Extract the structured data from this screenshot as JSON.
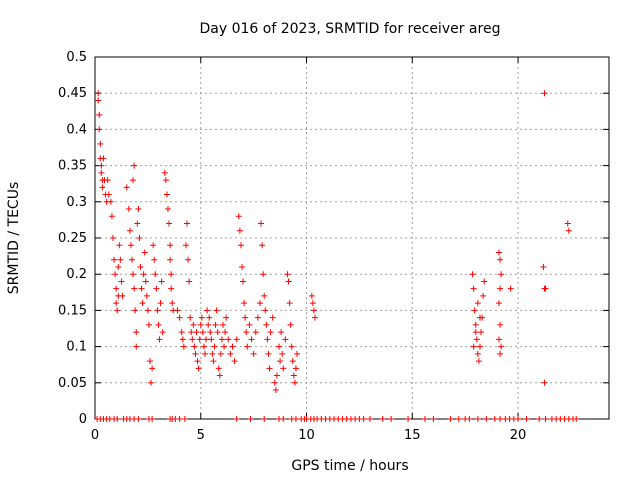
{
  "chart_data": {
    "type": "scatter",
    "title": "Day 016 of 2023, SRMTID for receiver areg",
    "xlabel": "GPS time / hours",
    "ylabel": "SRMTID / TECUs",
    "xlim": [
      0,
      24.3
    ],
    "ylim": [
      0,
      0.5
    ],
    "x_ticks": [
      0,
      5,
      10,
      15,
      20
    ],
    "x_tick_labels": [
      "0",
      "5",
      "10",
      "15",
      "20"
    ],
    "y_ticks": [
      0,
      0.05,
      0.1,
      0.15,
      0.2,
      0.25,
      0.3,
      0.35,
      0.4,
      0.45,
      0.5
    ],
    "y_tick_labels": [
      "0",
      "0.05",
      "0.1",
      "0.15",
      "0.2",
      "0.25",
      "0.3",
      "0.35",
      "0.4",
      "0.45",
      "0.5"
    ],
    "grid": true,
    "marker": "+",
    "marker_color": "#ff0000",
    "series": [
      {
        "name": "SRMTID",
        "points": [
          [
            0.15,
            0.45
          ],
          [
            0.15,
            0.44
          ],
          [
            0.2,
            0.42
          ],
          [
            0.2,
            0.4
          ],
          [
            0.25,
            0.38
          ],
          [
            0.25,
            0.36
          ],
          [
            0.3,
            0.35
          ],
          [
            0.3,
            0.34
          ],
          [
            0.35,
            0.33
          ],
          [
            0.35,
            0.32
          ],
          [
            0.4,
            0.36
          ],
          [
            0.45,
            0.33
          ],
          [
            0.5,
            0.31
          ],
          [
            0.55,
            0.3
          ],
          [
            0.6,
            0.33
          ],
          [
            0.65,
            0.31
          ],
          [
            0.75,
            0.3
          ],
          [
            0.8,
            0.28
          ],
          [
            0.85,
            0.25
          ],
          [
            0.9,
            0.22
          ],
          [
            0.95,
            0.2
          ],
          [
            1.0,
            0.18
          ],
          [
            1.0,
            0.16
          ],
          [
            1.05,
            0.15
          ],
          [
            1.1,
            0.17
          ],
          [
            1.1,
            0.21
          ],
          [
            1.15,
            0.24
          ],
          [
            1.2,
            0.22
          ],
          [
            1.25,
            0.19
          ],
          [
            1.3,
            0.17
          ],
          [
            1.5,
            0.32
          ],
          [
            1.6,
            0.29
          ],
          [
            1.65,
            0.26
          ],
          [
            1.7,
            0.24
          ],
          [
            1.75,
            0.22
          ],
          [
            1.8,
            0.2
          ],
          [
            1.85,
            0.18
          ],
          [
            1.9,
            0.15
          ],
          [
            1.95,
            0.12
          ],
          [
            1.95,
            0.1
          ],
          [
            1.8,
            0.33
          ],
          [
            1.85,
            0.35
          ],
          [
            2.0,
            0.27
          ],
          [
            2.05,
            0.29
          ],
          [
            2.1,
            0.25
          ],
          [
            2.15,
            0.21
          ],
          [
            2.2,
            0.18
          ],
          [
            2.25,
            0.16
          ],
          [
            2.3,
            0.2
          ],
          [
            2.35,
            0.23
          ],
          [
            2.4,
            0.19
          ],
          [
            2.45,
            0.17
          ],
          [
            2.5,
            0.15
          ],
          [
            2.55,
            0.13
          ],
          [
            2.6,
            0.08
          ],
          [
            2.65,
            0.05
          ],
          [
            2.7,
            0.07
          ],
          [
            2.75,
            0.24
          ],
          [
            2.8,
            0.22
          ],
          [
            2.85,
            0.2
          ],
          [
            2.9,
            0.18
          ],
          [
            2.95,
            0.15
          ],
          [
            3.0,
            0.13
          ],
          [
            3.05,
            0.11
          ],
          [
            3.1,
            0.16
          ],
          [
            3.15,
            0.19
          ],
          [
            3.2,
            0.12
          ],
          [
            3.3,
            0.34
          ],
          [
            3.35,
            0.33
          ],
          [
            3.4,
            0.31
          ],
          [
            3.45,
            0.29
          ],
          [
            3.5,
            0.27
          ],
          [
            3.55,
            0.24
          ],
          [
            3.55,
            0.22
          ],
          [
            3.6,
            0.2
          ],
          [
            3.6,
            0.18
          ],
          [
            3.65,
            0.16
          ],
          [
            3.7,
            0.15
          ],
          [
            3.9,
            0.15
          ],
          [
            4.0,
            0.14
          ],
          [
            4.1,
            0.12
          ],
          [
            4.15,
            0.11
          ],
          [
            4.2,
            0.1
          ],
          [
            4.3,
            0.24
          ],
          [
            4.35,
            0.27
          ],
          [
            4.4,
            0.22
          ],
          [
            4.45,
            0.19
          ],
          [
            4.5,
            0.14
          ],
          [
            4.55,
            0.12
          ],
          [
            4.6,
            0.11
          ],
          [
            4.65,
            0.13
          ],
          [
            4.7,
            0.1
          ],
          [
            4.75,
            0.09
          ],
          [
            4.8,
            0.12
          ],
          [
            4.85,
            0.08
          ],
          [
            4.9,
            0.07
          ],
          [
            4.95,
            0.11
          ],
          [
            5.0,
            0.13
          ],
          [
            5.05,
            0.14
          ],
          [
            5.1,
            0.12
          ],
          [
            5.15,
            0.1
          ],
          [
            5.2,
            0.09
          ],
          [
            5.25,
            0.11
          ],
          [
            5.3,
            0.15
          ],
          [
            5.35,
            0.13
          ],
          [
            5.4,
            0.14
          ],
          [
            5.45,
            0.12
          ],
          [
            5.5,
            0.11
          ],
          [
            5.55,
            0.09
          ],
          [
            5.6,
            0.08
          ],
          [
            5.65,
            0.1
          ],
          [
            5.7,
            0.13
          ],
          [
            5.75,
            0.15
          ],
          [
            5.8,
            0.12
          ],
          [
            5.85,
            0.07
          ],
          [
            5.9,
            0.06
          ],
          [
            5.95,
            0.09
          ],
          [
            6.0,
            0.11
          ],
          [
            6.05,
            0.13
          ],
          [
            6.1,
            0.1
          ],
          [
            6.15,
            0.12
          ],
          [
            6.2,
            0.14
          ],
          [
            6.3,
            0.11
          ],
          [
            6.4,
            0.09
          ],
          [
            6.5,
            0.1
          ],
          [
            6.6,
            0.08
          ],
          [
            6.7,
            0.11
          ],
          [
            6.8,
            0.28
          ],
          [
            6.85,
            0.26
          ],
          [
            6.9,
            0.24
          ],
          [
            6.95,
            0.21
          ],
          [
            7.0,
            0.19
          ],
          [
            7.05,
            0.16
          ],
          [
            7.1,
            0.14
          ],
          [
            7.15,
            0.12
          ],
          [
            7.2,
            0.1
          ],
          [
            7.3,
            0.13
          ],
          [
            7.4,
            0.11
          ],
          [
            7.5,
            0.09
          ],
          [
            7.6,
            0.12
          ],
          [
            7.7,
            0.14
          ],
          [
            7.8,
            0.16
          ],
          [
            7.85,
            0.27
          ],
          [
            7.9,
            0.24
          ],
          [
            7.95,
            0.2
          ],
          [
            8.0,
            0.17
          ],
          [
            8.05,
            0.15
          ],
          [
            8.1,
            0.13
          ],
          [
            8.15,
            0.11
          ],
          [
            8.2,
            0.09
          ],
          [
            8.25,
            0.07
          ],
          [
            8.3,
            0.12
          ],
          [
            8.4,
            0.14
          ],
          [
            8.5,
            0.05
          ],
          [
            8.55,
            0.04
          ],
          [
            8.6,
            0.06
          ],
          [
            8.7,
            0.1
          ],
          [
            8.75,
            0.08
          ],
          [
            8.8,
            0.12
          ],
          [
            8.85,
            0.09
          ],
          [
            8.9,
            0.07
          ],
          [
            9.0,
            0.11
          ],
          [
            9.1,
            0.2
          ],
          [
            9.15,
            0.19
          ],
          [
            9.2,
            0.16
          ],
          [
            9.25,
            0.13
          ],
          [
            9.3,
            0.1
          ],
          [
            9.35,
            0.08
          ],
          [
            9.4,
            0.06
          ],
          [
            9.45,
            0.05
          ],
          [
            9.5,
            0.07
          ],
          [
            9.55,
            0.09
          ],
          [
            10.25,
            0.17
          ],
          [
            10.3,
            0.16
          ],
          [
            10.35,
            0.15
          ],
          [
            10.4,
            0.14
          ],
          [
            17.85,
            0.2
          ],
          [
            17.9,
            0.18
          ],
          [
            17.95,
            0.15
          ],
          [
            18.0,
            0.13
          ],
          [
            18.05,
            0.11
          ],
          [
            18.1,
            0.09
          ],
          [
            18.15,
            0.08
          ],
          [
            18.2,
            0.1
          ],
          [
            18.25,
            0.12
          ],
          [
            18.3,
            0.14
          ],
          [
            18.35,
            0.17
          ],
          [
            18.4,
            0.19
          ],
          [
            18.1,
            0.16
          ],
          [
            18.2,
            0.14
          ],
          [
            17.9,
            0.1
          ],
          [
            18.0,
            0.12
          ],
          [
            19.1,
            0.23
          ],
          [
            19.15,
            0.22
          ],
          [
            19.2,
            0.2
          ],
          [
            19.15,
            0.18
          ],
          [
            19.1,
            0.16
          ],
          [
            19.15,
            0.13
          ],
          [
            19.1,
            0.11
          ],
          [
            19.2,
            0.1
          ],
          [
            19.15,
            0.09
          ],
          [
            19.65,
            0.18
          ],
          [
            21.25,
            0.45
          ],
          [
            21.2,
            0.21
          ],
          [
            21.25,
            0.18
          ],
          [
            21.3,
            0.18
          ],
          [
            21.25,
            0.05
          ],
          [
            22.35,
            0.27
          ],
          [
            22.4,
            0.26
          ]
        ]
      }
    ],
    "zero_points_x": [
      0.1,
      0.25,
      0.4,
      0.55,
      0.7,
      0.9,
      1.05,
      1.35,
      1.5,
      1.65,
      1.85,
      2.05,
      2.55,
      2.7,
      3.55,
      3.65,
      3.8,
      4.0,
      4.25,
      6.7,
      7.35,
      8.0,
      8.7,
      8.9,
      9.3,
      9.5,
      9.75,
      9.9,
      10.0,
      10.2,
      10.35,
      10.5,
      10.7,
      10.9,
      11.1,
      11.3,
      11.5,
      11.7,
      11.9,
      12.1,
      12.3,
      12.5,
      12.7,
      13.0,
      13.6,
      14.0,
      14.8,
      15.6,
      16.0,
      16.8,
      17.2,
      17.5,
      17.7,
      18.1,
      18.5,
      18.9,
      19.15,
      19.4,
      19.6,
      19.8,
      20.0,
      20.4,
      21.0,
      21.3,
      21.6,
      21.8,
      22.0,
      22.2,
      22.4,
      22.6,
      22.75
    ]
  }
}
